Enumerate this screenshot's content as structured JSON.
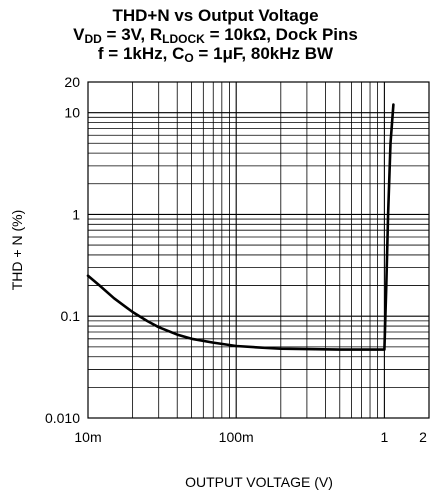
{
  "chart_data": {
    "type": "line",
    "title": {
      "line1": "THD+N vs Output Voltage",
      "line2_parts": [
        "V",
        "DD",
        " = 3V, R",
        "LDOCK",
        " = 10kΩ, Dock Pins"
      ],
      "line3_parts": [
        "f = 1kHz, C",
        "O",
        " = 1μF, 80kHz BW"
      ]
    },
    "xlabel": "OUTPUT VOLTAGE (V)",
    "ylabel": "THD + N (%)",
    "x_scale": "log",
    "y_scale": "log",
    "xlim": [
      0.01,
      2
    ],
    "ylim": [
      0.01,
      20
    ],
    "x_ticks": [
      {
        "value": 0.01,
        "label": "10m"
      },
      {
        "value": 0.1,
        "label": "100m"
      },
      {
        "value": 1,
        "label": "1"
      },
      {
        "value": 2,
        "label": "2"
      }
    ],
    "y_ticks": [
      {
        "value": 0.01,
        "label": "0.010"
      },
      {
        "value": 0.1,
        "label": "0.1"
      },
      {
        "value": 1,
        "label": "1"
      },
      {
        "value": 10,
        "label": "10"
      },
      {
        "value": 20,
        "label": "20"
      }
    ],
    "grid": true,
    "series": [
      {
        "color": "#000000",
        "points": [
          [
            0.01,
            0.25
          ],
          [
            0.012,
            0.2
          ],
          [
            0.015,
            0.15
          ],
          [
            0.02,
            0.11
          ],
          [
            0.025,
            0.09
          ],
          [
            0.03,
            0.078
          ],
          [
            0.04,
            0.066
          ],
          [
            0.05,
            0.06
          ],
          [
            0.07,
            0.055
          ],
          [
            0.1,
            0.051
          ],
          [
            0.15,
            0.049
          ],
          [
            0.2,
            0.048
          ],
          [
            0.3,
            0.0475
          ],
          [
            0.5,
            0.047
          ],
          [
            0.7,
            0.047
          ],
          [
            1.0,
            0.047
          ],
          [
            1.03,
            0.2
          ],
          [
            1.06,
            1.0
          ],
          [
            1.1,
            5.0
          ],
          [
            1.15,
            12.0
          ]
        ]
      }
    ]
  }
}
